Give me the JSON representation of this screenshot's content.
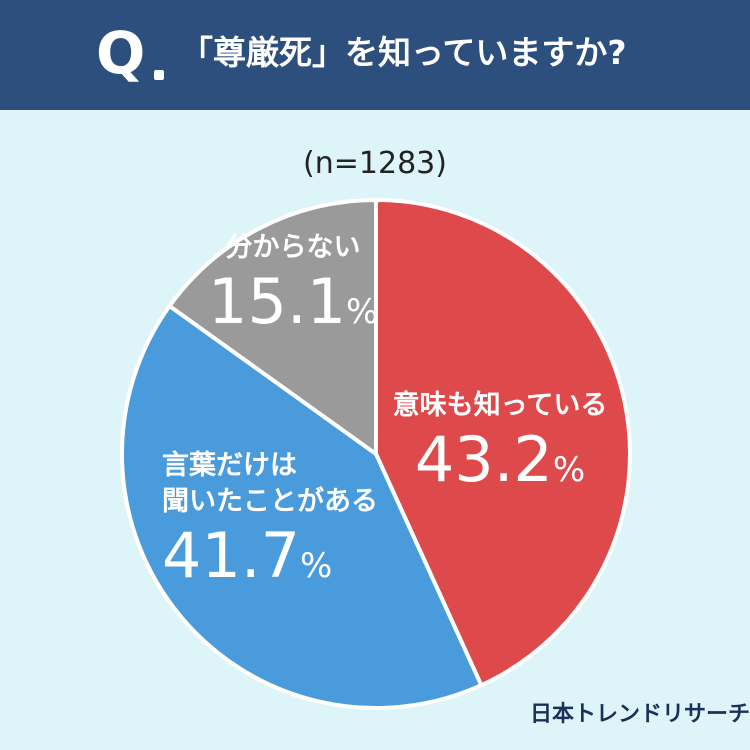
{
  "header": {
    "q_mark": "Q",
    "question": "「尊厳死」を知っていますか?"
  },
  "sample_size": "(n=1283)",
  "chart_data": {
    "type": "pie",
    "title": "「尊厳死」を知っていますか?",
    "n": 1283,
    "unit": "%",
    "slices": [
      {
        "label": "意味も知っている",
        "label_lines": [
          "意味も知っている"
        ],
        "value": 43.2,
        "value_text": "43.2",
        "color": "#de4a4b"
      },
      {
        "label": "言葉だけは聞いたことがある",
        "label_lines": [
          "言葉だけは",
          "聞いたことがある"
        ],
        "value": 41.7,
        "value_text": "41.7",
        "color": "#4a9bdc"
      },
      {
        "label": "分からない",
        "label_lines": [
          "分からない"
        ],
        "value": 15.1,
        "value_text": "15.1",
        "color": "#9a9a9a"
      }
    ]
  },
  "brand": "日本トレンドリサーチ"
}
